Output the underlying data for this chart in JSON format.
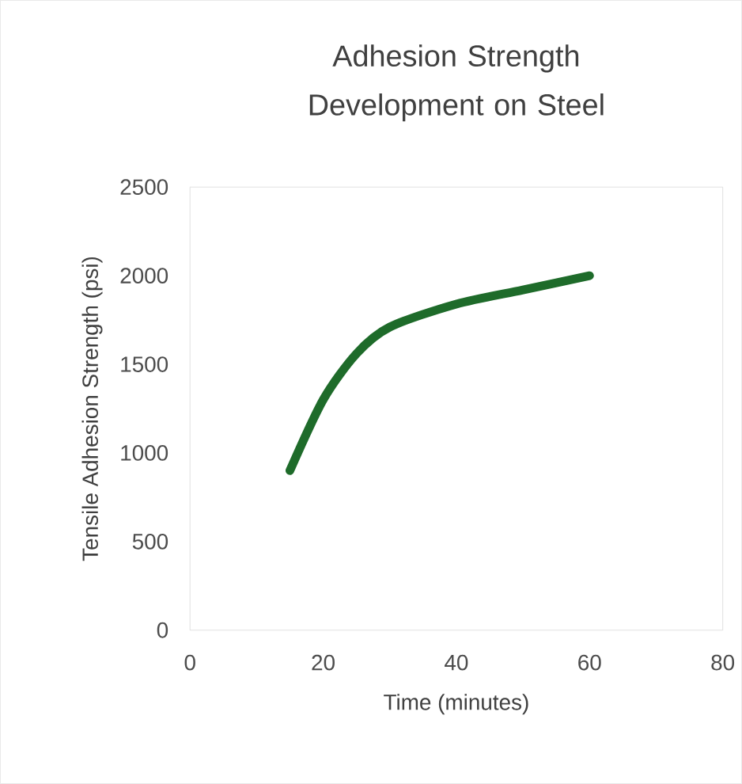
{
  "chart_data": {
    "type": "line",
    "title": "Adhesion Strength Development on Steel",
    "xlabel": "Time (minutes)",
    "ylabel": "Tensile Adhesion Strength (psi)",
    "series": [
      {
        "color": "#1e6b2a",
        "x": [
          15,
          20,
          25,
          30,
          40,
          50,
          60
        ],
        "values": [
          900,
          1300,
          1560,
          1710,
          1840,
          1920,
          2000
        ]
      }
    ],
    "xlim": [
      0,
      80
    ],
    "xticks": [
      0,
      20,
      40,
      60,
      80
    ],
    "ylim": [
      0,
      2500
    ],
    "yticks": [
      0,
      500,
      1000,
      1500,
      2000,
      2500
    ],
    "grid": false,
    "marker": "none",
    "line_style": "solid"
  }
}
